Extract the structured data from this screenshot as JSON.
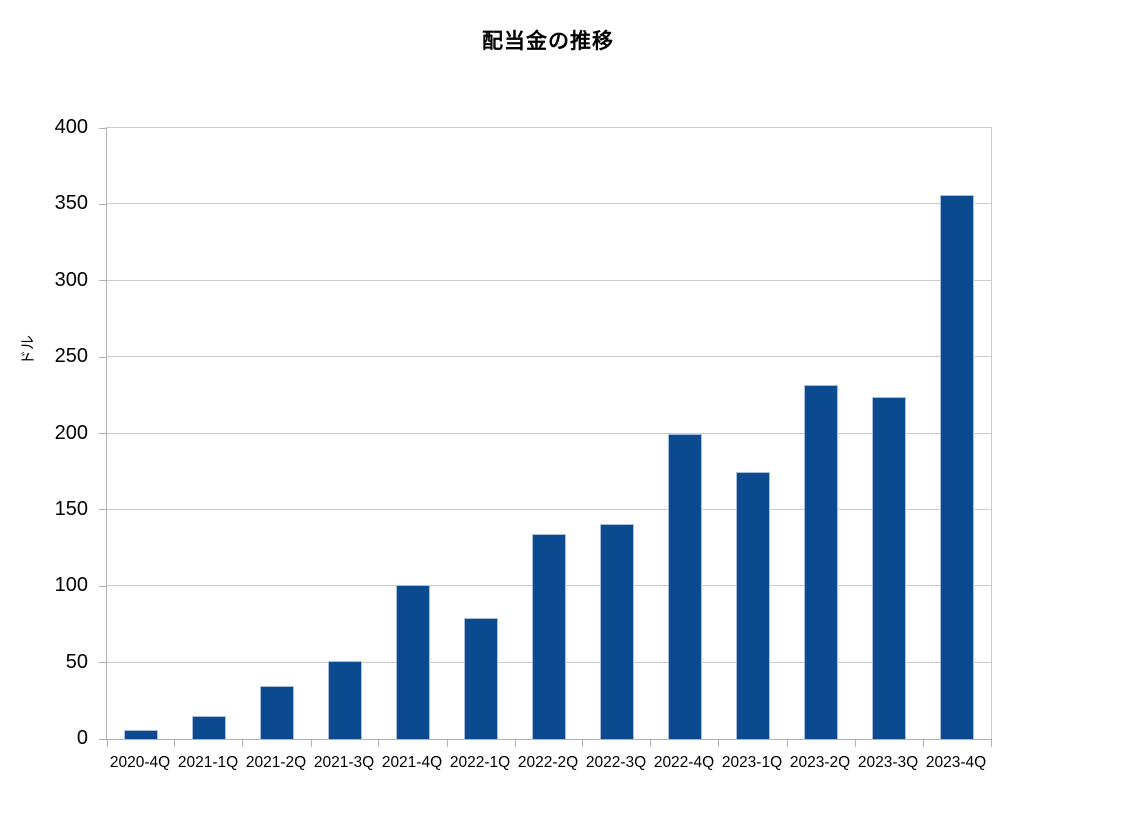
{
  "page": {
    "background": "#ffffff"
  },
  "colors": {
    "page_bg": "#ffffff",
    "text": "#000000",
    "bar_fill": "#0b4a8f",
    "bar_border": "#aabfdc",
    "gridline": "#cccccc",
    "axis": "#b2b2b2"
  },
  "chart_data": {
    "type": "bar",
    "title": "配当金の推移",
    "xlabel": "",
    "ylabel": "ドル",
    "categories": [
      "2020-4Q",
      "2021-1Q",
      "2021-2Q",
      "2021-3Q",
      "2021-4Q",
      "2022-1Q",
      "2022-2Q",
      "2022-3Q",
      "2022-4Q",
      "2023-1Q",
      "2023-2Q",
      "2023-3Q",
      "2023-4Q"
    ],
    "values": [
      6,
      15,
      35,
      51,
      101,
      79,
      134,
      141,
      200,
      175,
      232,
      224,
      356
    ],
    "ylim": [
      0,
      400
    ],
    "ytick_step": 50,
    "ytick_labels": [
      "0",
      "50",
      "100",
      "150",
      "200",
      "250",
      "300",
      "350",
      "400"
    ],
    "grid": true,
    "legend_position": "none",
    "bar_color": "#0b4a8f"
  }
}
